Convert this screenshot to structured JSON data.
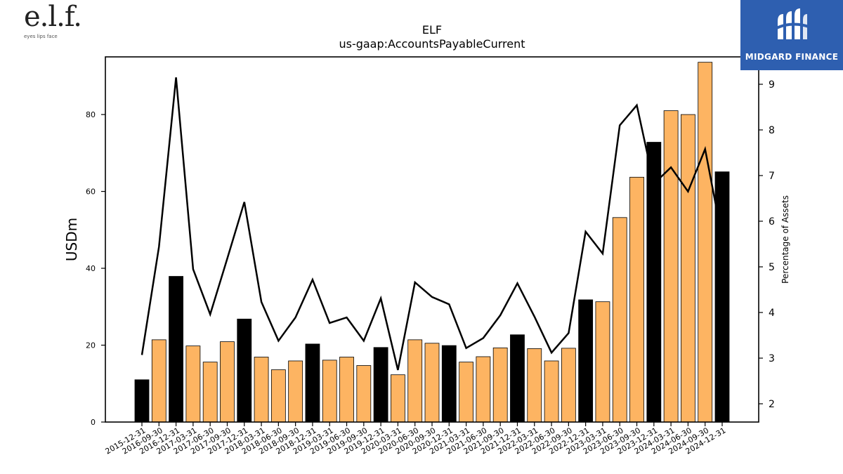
{
  "logos": {
    "elf_main": "e.l.f.",
    "elf_tagline": "eyes lips face",
    "midgard_name": "MIDGARD FINANCE"
  },
  "chart_data": {
    "type": "bar",
    "title": "ELF",
    "subtitle": "us-gaap:AccountsPayableCurrent",
    "ylabel": "USDm",
    "y2label": "Percentage of Assets",
    "ylim": [
      0,
      95
    ],
    "y2lim": [
      1.6,
      9.6
    ],
    "yticks": [
      0,
      20,
      40,
      60,
      80
    ],
    "y2ticks": [
      2,
      3,
      4,
      5,
      6,
      7,
      8,
      9
    ],
    "colors": {
      "annual_bar": "#000000",
      "quarterly_bar": "#fdb462",
      "line": "#000000"
    },
    "categories": [
      "2015-12-31",
      "2016-09-30",
      "2016-12-31",
      "2017-03-31",
      "2017-06-30",
      "2017-09-30",
      "2017-12-31",
      "2018-03-31",
      "2018-06-30",
      "2018-09-30",
      "2018-12-31",
      "2019-03-31",
      "2019-06-30",
      "2019-09-30",
      "2019-12-31",
      "2020-03-31",
      "2020-06-30",
      "2020-09-30",
      "2020-12-31",
      "2021-03-31",
      "2021-06-30",
      "2021-09-30",
      "2021-12-31",
      "2022-03-31",
      "2022-06-30",
      "2022-09-30",
      "2022-12-31",
      "2023-03-31",
      "2023-06-30",
      "2023-09-30",
      "2023-12-31",
      "2024-03-31",
      "2024-06-30",
      "2024-09-30",
      "2024-12-31"
    ],
    "series": [
      {
        "kind": "bar",
        "axis": "left",
        "values": [
          11.0,
          21.4,
          37.9,
          19.8,
          15.6,
          20.9,
          26.8,
          16.9,
          13.6,
          15.9,
          20.3,
          16.1,
          16.9,
          14.7,
          19.4,
          12.3,
          21.4,
          20.5,
          19.9,
          15.6,
          17.0,
          19.3,
          22.7,
          19.1,
          15.9,
          19.2,
          31.8,
          31.3,
          53.2,
          63.7,
          72.8,
          81.0,
          80.0,
          93.6,
          65.1
        ],
        "annual_flags": [
          true,
          false,
          true,
          false,
          false,
          false,
          true,
          false,
          false,
          false,
          true,
          false,
          false,
          false,
          true,
          false,
          false,
          false,
          true,
          false,
          false,
          false,
          true,
          false,
          false,
          false,
          true,
          false,
          false,
          false,
          true,
          false,
          false,
          false,
          true
        ]
      },
      {
        "kind": "line",
        "axis": "right",
        "values": [
          3.07,
          5.44,
          9.15,
          4.95,
          3.96,
          5.18,
          6.42,
          4.23,
          3.38,
          3.89,
          4.72,
          3.77,
          3.89,
          3.38,
          4.31,
          2.74,
          4.66,
          4.34,
          4.18,
          3.22,
          3.44,
          3.94,
          4.64,
          3.91,
          3.12,
          3.55,
          5.77,
          5.29,
          8.1,
          8.54,
          6.82,
          7.18,
          6.65,
          7.58,
          5.63
        ]
      }
    ]
  }
}
